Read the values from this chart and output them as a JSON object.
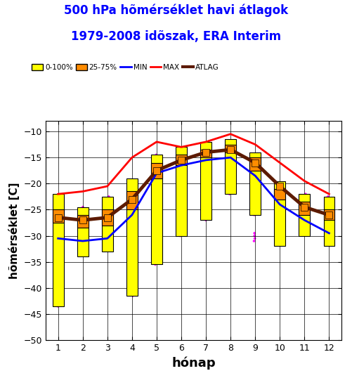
{
  "title_line1": "500 hPa hõmérséklet havi átlagok",
  "title_line2": "1979-2008 idõszak, ERA Interim",
  "title_color": "#0000ff",
  "xlabel": "hónap",
  "ylabel": "hõmérséklet [C]",
  "xlim": [
    0.5,
    12.5
  ],
  "ylim": [
    -50,
    -8
  ],
  "yticks": [
    -50,
    -45,
    -40,
    -35,
    -30,
    -25,
    -20,
    -15,
    -10
  ],
  "xticks": [
    1,
    2,
    3,
    4,
    5,
    6,
    7,
    8,
    9,
    10,
    11,
    12
  ],
  "months": [
    1,
    2,
    3,
    4,
    5,
    6,
    7,
    8,
    9,
    10,
    11,
    12
  ],
  "min_line": [
    -30.5,
    -31.0,
    -30.5,
    -26.0,
    -18.0,
    -16.5,
    -15.5,
    -15.0,
    -18.5,
    -24.0,
    -27.0,
    -29.5
  ],
  "max_line": [
    -22.0,
    -21.5,
    -20.5,
    -15.0,
    -12.0,
    -13.0,
    -12.0,
    -10.5,
    -12.5,
    -16.0,
    -19.5,
    -22.0
  ],
  "mean_line": [
    -26.5,
    -27.0,
    -26.5,
    -23.0,
    -17.5,
    -15.5,
    -14.0,
    -13.5,
    -16.0,
    -20.5,
    -24.5,
    -26.0
  ],
  "box_bottom_0_100": [
    -43.5,
    -34.0,
    -33.0,
    -41.5,
    -35.5,
    -30.0,
    -27.0,
    -22.0,
    -26.0,
    -32.0,
    -30.0,
    -32.0
  ],
  "box_top_0_100": [
    -22.0,
    -24.5,
    -22.5,
    -19.0,
    -14.5,
    -13.0,
    -12.0,
    -11.5,
    -14.0,
    -19.5,
    -22.0,
    -22.5
  ],
  "box_bottom_25_75": [
    -27.5,
    -28.5,
    -28.0,
    -25.0,
    -19.0,
    -16.5,
    -15.0,
    -14.0,
    -17.5,
    -23.0,
    -26.0,
    -27.0
  ],
  "box_top_25_75": [
    -25.0,
    -26.0,
    -25.0,
    -21.5,
    -16.0,
    -14.5,
    -13.5,
    -12.5,
    -15.0,
    -21.0,
    -23.5,
    -25.0
  ],
  "scatter_data": {
    "1": [
      -43.5,
      -42.5,
      -42.0,
      -37.5,
      -36.5,
      -36.0,
      -35.5,
      -35.0,
      -34.5,
      -34.0,
      -33.5,
      -33.0,
      -32.5,
      -32.0,
      -31.5,
      -31.0,
      -30.5,
      -30.0,
      -29.5,
      -29.0,
      -28.5,
      -28.0,
      -27.5,
      -27.0,
      -26.5,
      -26.0,
      -25.0,
      -24.5,
      -24.0,
      -23.0
    ],
    "2": [
      -33.5,
      -33.0,
      -32.5,
      -32.0,
      -31.5,
      -31.0,
      -30.5,
      -30.0,
      -29.5,
      -29.0,
      -28.5,
      -28.0,
      -27.5,
      -27.0,
      -26.5,
      -26.0,
      -25.5,
      -25.0,
      -24.5
    ],
    "3": [
      -32.5,
      -32.0,
      -31.5,
      -31.0,
      -30.5,
      -30.0,
      -29.5,
      -29.0,
      -28.5,
      -28.0,
      -27.5,
      -27.0,
      -26.5,
      -26.0,
      -25.5,
      -25.0,
      -24.5,
      -24.0,
      -23.5,
      -23.0,
      -22.5
    ],
    "4": [
      -41.5,
      -40.5,
      -39.5,
      -38.5,
      -38.0,
      -37.5,
      -37.0,
      -36.5,
      -36.0,
      -35.5,
      -35.0,
      -34.5,
      -34.0,
      -33.5,
      -33.0,
      -32.5,
      -32.0,
      -31.5,
      -31.0,
      -30.5,
      -30.0,
      -29.5,
      -29.0,
      -28.5,
      -28.0,
      -27.0,
      -26.0,
      -25.0,
      -24.0,
      -23.0
    ],
    "5": [
      -35.5,
      -34.5,
      -33.5,
      -32.5,
      -31.5,
      -30.5,
      -29.5,
      -28.5,
      -27.5,
      -26.5,
      -25.5,
      -24.5,
      -23.5,
      -22.5,
      -21.5,
      -20.5,
      -19.5,
      -18.5,
      -17.5,
      -16.5,
      -15.5,
      -15.0,
      -14.5
    ],
    "6": [
      -30.0,
      -29.5,
      -29.0,
      -28.5,
      -28.0,
      -27.5,
      -27.0,
      -26.5,
      -26.0,
      -25.5,
      -25.0,
      -24.5,
      -24.0,
      -23.5,
      -23.0,
      -22.5,
      -22.0,
      -21.5,
      -21.0,
      -20.5,
      -20.0,
      -19.5,
      -19.0,
      -18.5,
      -18.0,
      -17.5,
      -17.0,
      -16.5,
      -16.0,
      -15.5
    ],
    "7": [
      -27.0,
      -26.5,
      -26.0,
      -25.5,
      -25.0,
      -24.5,
      -24.0,
      -23.5,
      -23.0,
      -22.5,
      -22.0,
      -21.5,
      -21.0,
      -20.5,
      -20.0,
      -19.5,
      -19.0,
      -18.5,
      -18.0,
      -17.5,
      -17.0,
      -16.5,
      -16.0,
      -15.5,
      -15.0,
      -14.5,
      -14.0,
      -13.5
    ],
    "8": [
      -22.0,
      -21.5,
      -21.0,
      -20.5,
      -20.0,
      -19.5,
      -19.0,
      -18.5,
      -18.0,
      -17.5,
      -17.0,
      -16.5,
      -16.0,
      -15.5,
      -15.0,
      -14.5,
      -14.0,
      -13.5,
      -13.0,
      -12.5,
      -12.0
    ],
    "9": [
      -26.0,
      -25.5,
      -25.0,
      -24.5,
      -24.0,
      -23.5,
      -23.0,
      -22.5,
      -22.0,
      -21.5,
      -21.0,
      -20.5,
      -20.0,
      -19.5,
      -19.0,
      -18.5,
      -18.0,
      -17.5,
      -17.0,
      -16.5,
      -31.0,
      -30.5,
      -30.0,
      -29.5
    ],
    "10": [
      -31.5,
      -31.0,
      -30.5,
      -30.0,
      -29.5,
      -29.0,
      -28.5,
      -28.0,
      -27.5,
      -27.0,
      -26.5,
      -26.0,
      -25.5,
      -25.0,
      -24.5,
      -24.0,
      -23.5,
      -23.0,
      -22.5,
      -22.0,
      -21.5,
      -21.0,
      -20.5
    ],
    "11": [
      -29.5,
      -29.0,
      -28.5,
      -28.0,
      -27.5,
      -27.0,
      -26.5,
      -26.0,
      -25.5,
      -25.0,
      -24.5,
      -24.0,
      -23.5,
      -23.0,
      -22.5,
      -22.0
    ],
    "12": [
      -31.5,
      -31.0,
      -30.5,
      -30.0,
      -29.5,
      -29.0,
      -28.5,
      -28.0,
      -27.5,
      -27.0,
      -26.5,
      -26.0,
      -25.5,
      -25.0,
      -24.5,
      -24.0,
      -23.5,
      -23.0,
      -22.5
    ]
  },
  "color_0_100": "#ffff00",
  "color_25_75": "#ff8c00",
  "color_min": "#0000ff",
  "color_max": "#ff0000",
  "color_mean": "#5c1a00",
  "color_scatter": "#ff00ff",
  "box_width": 0.45,
  "mean_linewidth": 3.5,
  "min_max_linewidth": 2.0,
  "bg_color": "#ffffff"
}
